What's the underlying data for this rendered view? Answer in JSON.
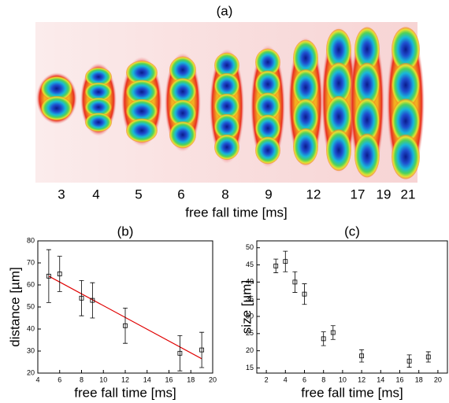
{
  "panel_a": {
    "title": "(a)",
    "labels": [
      "3",
      "4",
      "5",
      "6",
      "8",
      "9",
      "12",
      "17",
      "19",
      "21"
    ],
    "xlabel": "free fall time [ms]"
  },
  "chart_data": [
    {
      "type": "scatter",
      "title": "(b)",
      "xlabel": "free fall time [ms]",
      "ylabel": "distance [µm]",
      "x": [
        5,
        6,
        8,
        9,
        12,
        17,
        19
      ],
      "values": [
        64,
        65,
        54,
        53,
        41.5,
        29,
        30.5
      ],
      "errors": [
        12,
        8,
        8,
        8,
        8,
        8,
        8
      ],
      "color": "#000000",
      "fit": {
        "x": [
          5,
          19
        ],
        "y": [
          64,
          26.5
        ],
        "color": "#e00000"
      },
      "xlim": [
        4,
        20
      ],
      "xticks": [
        4,
        6,
        8,
        10,
        12,
        14,
        16,
        18,
        20
      ],
      "ylim": [
        20,
        80
      ],
      "yticks": [
        20,
        30,
        40,
        50,
        60,
        70,
        80
      ]
    },
    {
      "type": "scatter",
      "title": "(c)",
      "xlabel": "free fall time [ms]",
      "ylabel": "size [µm]",
      "x": [
        3,
        4,
        5,
        6,
        8,
        9,
        12,
        17,
        19
      ],
      "values": [
        44.7,
        46,
        40,
        36.5,
        23.5,
        25.3,
        18.5,
        17,
        18.2
      ],
      "errors": [
        2,
        3,
        3,
        3,
        2,
        2,
        1.8,
        1.8,
        1.5
      ],
      "color": "#000000",
      "xlim": [
        1,
        21
      ],
      "xticks": [
        2,
        4,
        6,
        8,
        10,
        12,
        14,
        16,
        18,
        20
      ],
      "ylim": [
        13.5,
        52
      ],
      "yticks": [
        15,
        20,
        25,
        30,
        35,
        40,
        45,
        50
      ]
    }
  ]
}
